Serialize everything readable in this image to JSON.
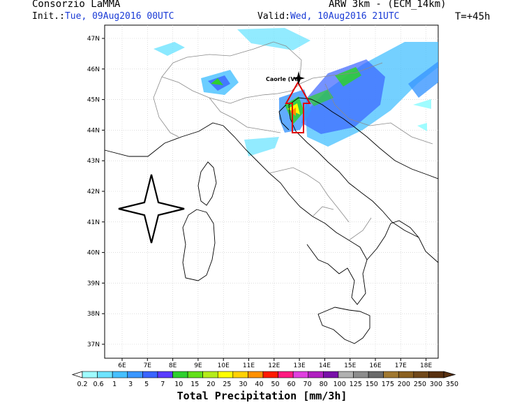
{
  "header": {
    "org": "Consorzio LaMMA",
    "init_label": "Init.:",
    "init_value": "Tue, 09Aug2016 00UTC",
    "model": "ARW 3km - (ECM_14km)",
    "valid_label": "Valid:",
    "valid_value": "Wed, 10Aug2016 21UTC",
    "lead": "T=+45h"
  },
  "map": {
    "lat_labels": [
      "47N",
      "46N",
      "45N",
      "44N",
      "43N",
      "42N",
      "41N",
      "40N",
      "39N",
      "38N",
      "37N"
    ],
    "lon_labels": [
      "6E",
      "7E",
      "8E",
      "9E",
      "10E",
      "11E",
      "12E",
      "13E",
      "14E",
      "15E",
      "16E",
      "17E",
      "18E"
    ],
    "place_label": "Caorle (Ve)",
    "marker_icon": "compass-star-icon",
    "arrow_icon": "red-arrow-icon"
  },
  "colorbar": {
    "labels": [
      "0.2",
      "0.6",
      "1",
      "3",
      "5",
      "7",
      "10",
      "15",
      "20",
      "25",
      "30",
      "40",
      "50",
      "60",
      "70",
      "80",
      "100",
      "125",
      "150",
      "175",
      "200",
      "250",
      "300",
      "350"
    ],
    "colors": [
      "#9ffcff",
      "#6ee4ff",
      "#46c0ff",
      "#3a96ff",
      "#3a64ff",
      "#5a3cff",
      "#2ed02e",
      "#62e01a",
      "#b4ec1a",
      "#ffff00",
      "#ffd200",
      "#ff9000",
      "#ff1a00",
      "#ff1a80",
      "#e040e0",
      "#b020c0",
      "#7810a8",
      "#b0b0b0",
      "#8c8c8c",
      "#6a6a6a",
      "#a07830",
      "#8a6020",
      "#70481a",
      "#583010"
    ],
    "title": "Total Precipitation [mm/3h]"
  }
}
